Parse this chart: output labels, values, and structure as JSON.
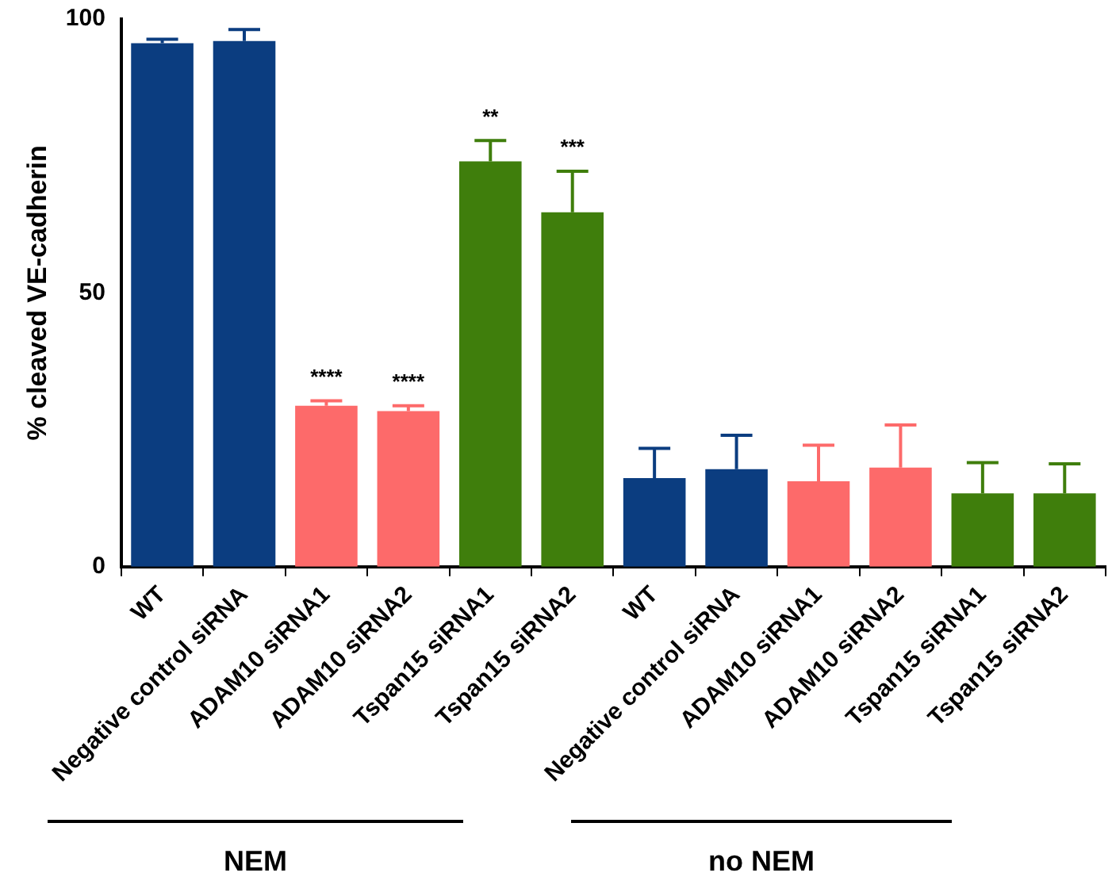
{
  "chart_data": {
    "type": "bar",
    "ylabel": "% cleaved VE-cadherin",
    "categories": [
      "WT",
      "Negative control siRNA",
      "ADAM10 siRNA1",
      "ADAM10 siRNA2",
      "Tspan15 siRNA1",
      "Tspan15 siRNA2",
      "WT",
      "Negative control siRNA",
      "ADAM10 siRNA1",
      "ADAM10 siRNA2",
      "Tspan15 siRNA1",
      "Tspan15 siRNA2"
    ],
    "values": [
      95.6,
      96,
      29.4,
      28.4,
      74,
      64.7,
      16.2,
      17.8,
      15.6,
      18.1,
      13.4,
      13.4
    ],
    "colors": [
      "#0b3d80",
      "#0b3d80",
      "#fd6a6a",
      "#fd6a6a",
      "#3f7e0c",
      "#3f7e0c",
      "#0b3d80",
      "#0b3d80",
      "#fd6a6a",
      "#fd6a6a",
      "#3f7e0c",
      "#3f7e0c"
    ],
    "errors": [
      [
        95.6,
        96.3
      ],
      [
        96,
        98.1
      ],
      [
        29.4,
        30.3
      ],
      [
        28.4,
        29.4
      ],
      [
        74,
        77.8
      ],
      [
        64.7,
        72.2
      ],
      [
        16.2,
        21.6
      ],
      [
        17.8,
        24
      ],
      [
        15.6,
        22.2
      ],
      [
        18.1,
        25.9
      ],
      [
        13.4,
        19
      ],
      [
        13.4,
        18.8
      ]
    ],
    "value_labels": [
      null,
      null,
      "****",
      "****",
      "**",
      "***",
      null,
      null,
      null,
      null,
      null,
      null
    ],
    "ylim": [
      0,
      100
    ],
    "yticks": [
      0,
      50,
      100
    ],
    "grid": false,
    "legend": false,
    "annotations": [
      "NEM",
      "no NEM"
    ]
  }
}
